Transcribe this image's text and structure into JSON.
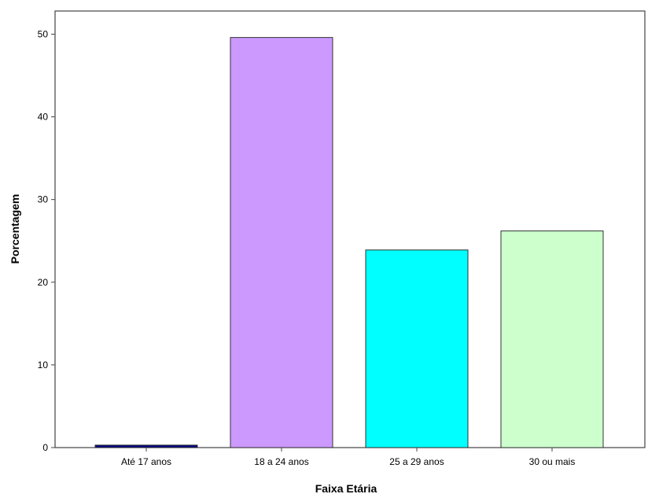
{
  "chart_data": {
    "type": "bar",
    "title": "",
    "xlabel": "Faixa Etária",
    "ylabel": "Porcentagem",
    "categories": [
      "Até 17 anos",
      "18 a 24 anos",
      "25 a 29 anos",
      "30 ou mais"
    ],
    "values": [
      0.3,
      49.6,
      23.9,
      26.2
    ],
    "colors": [
      "#000080",
      "#cc99ff",
      "#00ffff",
      "#ccffcc"
    ],
    "ylim": [
      0,
      52.8
    ],
    "yticks": [
      0,
      10,
      20,
      30,
      40,
      50
    ],
    "grid": false,
    "legend": "none"
  }
}
